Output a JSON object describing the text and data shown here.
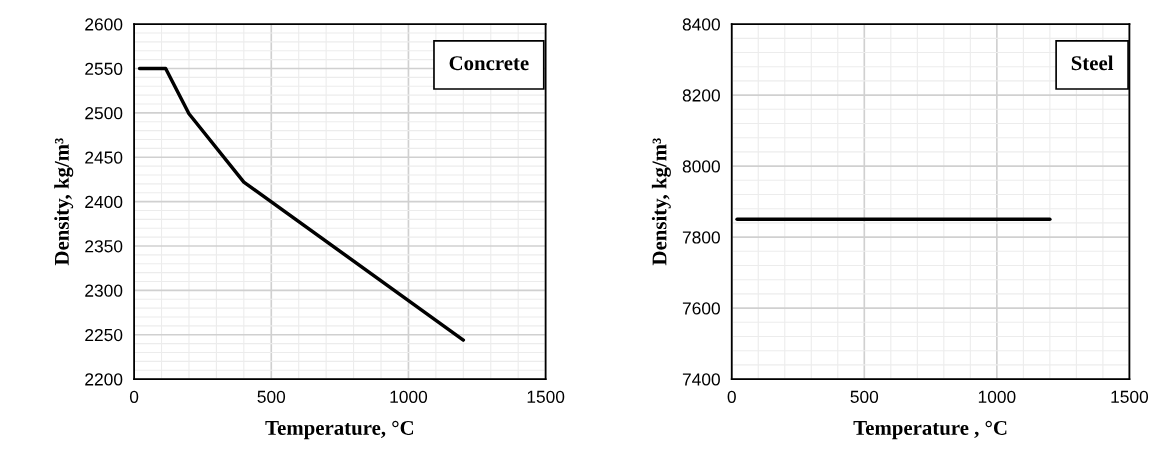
{
  "chart_data": [
    {
      "type": "line",
      "xlabel": "Temperature, °C",
      "ylabel": "Density, kg/m³",
      "annotations": [
        "Concrete"
      ],
      "series": [
        {
          "color": "#000000",
          "x": [
            20,
            115,
            200,
            400,
            1200
          ],
          "values": [
            2550,
            2550,
            2499,
            2422,
            2244
          ]
        }
      ],
      "xlim": [
        0,
        1500
      ],
      "xticks": [
        0,
        500,
        1000,
        1500
      ],
      "ylim": [
        2200,
        2600
      ],
      "yticks": [
        2200,
        2250,
        2300,
        2350,
        2400,
        2450,
        2500,
        2550,
        2600
      ],
      "grid": true,
      "marker": "none",
      "line_style": "solid"
    },
    {
      "type": "line",
      "xlabel": "Temperature , °C",
      "ylabel": "Density, kg/m³",
      "annotations": [
        "Steel"
      ],
      "series": [
        {
          "color": "#000000",
          "x": [
            20,
            1200
          ],
          "values": [
            7850,
            7850
          ]
        }
      ],
      "xlim": [
        0,
        1500
      ],
      "xticks": [
        0,
        500,
        1000,
        1500
      ],
      "ylim": [
        7400,
        8400
      ],
      "yticks": [
        7400,
        7600,
        7800,
        8000,
        8200,
        8400
      ],
      "grid": true,
      "marker": "none",
      "line_style": "solid"
    }
  ]
}
